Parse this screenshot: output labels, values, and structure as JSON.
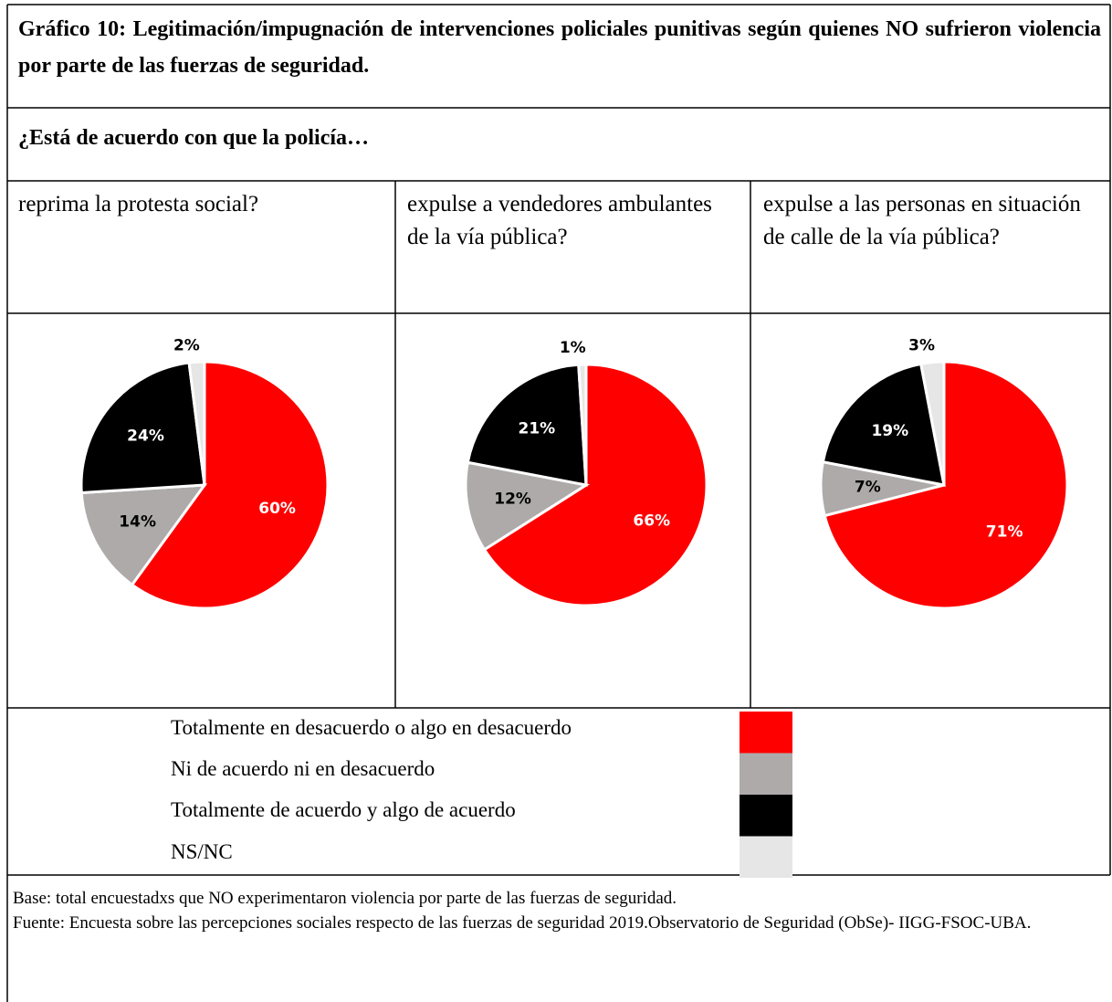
{
  "title": "Gráfico 10: Legitimación/impugnación de intervenciones policiales punitivas según quienes NO sufrieron violencia por parte de las fuerzas de seguridad.",
  "question": "¿Está de acuerdo con que la policía…",
  "legend": {
    "labels": [
      "Totalmente en desacuerdo o algo en desacuerdo",
      "Ni de acuerdo ni en desacuerdo",
      "Totalmente de acuerdo y algo de acuerdo",
      "NS/NC"
    ],
    "colors": [
      "#ff0000",
      "#aeaaaa",
      "#000000",
      "#e7e6e6"
    ]
  },
  "chart_data": [
    {
      "type": "pie",
      "title": "reprima la protesta social?",
      "values": [
        60,
        14,
        24,
        2
      ],
      "value_labels": [
        "60%",
        "14%",
        "24%",
        "2%"
      ]
    },
    {
      "type": "pie",
      "title": "expulse a vendedores ambulantes de la vía pública?",
      "values": [
        66,
        12,
        21,
        1
      ],
      "value_labels": [
        "66%",
        "12%",
        "21%",
        "1%"
      ]
    },
    {
      "type": "pie",
      "title": "expulse a las personas en situación de calle de la vía pública?",
      "values": [
        71,
        7,
        19,
        3
      ],
      "value_labels": [
        "71%",
        "7%",
        "19%",
        "3%"
      ]
    }
  ],
  "footer": [
    "Base: total encuestadxs que NO experimentaron violencia por parte de las fuerzas de seguridad.",
    "Fuente: Encuesta sobre las percepciones sociales respecto de las fuerzas de seguridad 2019.Observatorio de Seguridad (ObSe)- IIGG-FSOC-UBA."
  ]
}
